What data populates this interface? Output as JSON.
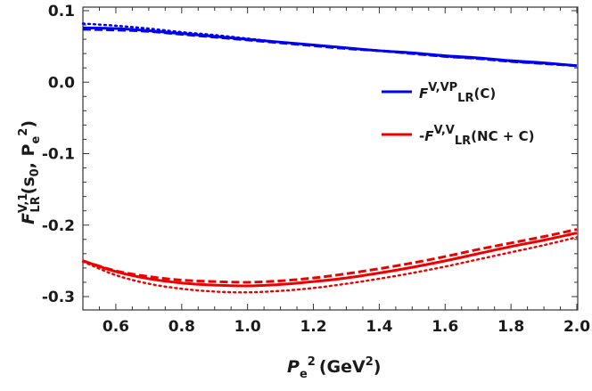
{
  "chart_data": {
    "type": "line",
    "title": "",
    "xlabel": {
      "base": "P",
      "sub": "e",
      "sup": "2",
      "unit_open": "(GeV",
      "unit_sup": "2",
      "unit_close": ")"
    },
    "ylabel": {
      "base": "F",
      "sup": "V,1",
      "sub": "LR",
      "args_open": "(s",
      "args_sub": "0",
      "args_mid": ", P",
      "args_sub2": "e",
      "args_sup2": "2",
      "args_close": ")"
    },
    "xlim": [
      0.5,
      2.0
    ],
    "ylim": [
      -0.3,
      0.1
    ],
    "x_ticks": [
      "0.6",
      "0.8",
      "1.0",
      "1.2",
      "1.4",
      "1.6",
      "1.8",
      "2.0"
    ],
    "y_ticks": [
      "0.1",
      "0.0",
      "-0.1",
      "-0.2",
      "-0.3"
    ],
    "grid": false,
    "legend_position": "right",
    "colors": {
      "blue": "#0000ee",
      "red": "#ee0000",
      "axis": "#333333"
    },
    "legend": [
      {
        "prefix": "",
        "main": "F",
        "sup": "V,VP",
        "sub": "LR",
        "arg": "(C)",
        "color": "#0000ee"
      },
      {
        "prefix": "-",
        "main": "F",
        "sup": "V,V",
        "sub": "LR",
        "arg": "(NC + C)",
        "color": "#ee0000"
      }
    ],
    "x": [
      0.5,
      0.6,
      0.7,
      0.8,
      0.9,
      1.0,
      1.1,
      1.2,
      1.3,
      1.4,
      1.5,
      1.6,
      1.7,
      1.8,
      1.9,
      2.0
    ],
    "series": [
      {
        "color": "#0000ee",
        "style": "solid",
        "values": [
          0.076,
          0.075,
          0.072,
          0.068,
          0.064,
          0.06,
          0.056,
          0.052,
          0.048,
          0.044,
          0.041,
          0.037,
          0.034,
          0.03,
          0.027,
          0.023
        ]
      },
      {
        "color": "#0000ee",
        "style": "dashed",
        "values": [
          0.074,
          0.073,
          0.071,
          0.067,
          0.063,
          0.059,
          0.055,
          0.051,
          0.047,
          0.044,
          0.04,
          0.036,
          0.033,
          0.029,
          0.026,
          0.023
        ]
      },
      {
        "color": "#0000ee",
        "style": "dotted",
        "values": [
          0.082,
          0.079,
          0.075,
          0.07,
          0.066,
          0.061,
          0.056,
          0.052,
          0.048,
          0.044,
          0.04,
          0.036,
          0.033,
          0.029,
          0.026,
          0.023
        ]
      },
      {
        "color": "#ee0000",
        "style": "solid",
        "values": [
          -0.25,
          -0.265,
          -0.275,
          -0.281,
          -0.284,
          -0.285,
          -0.283,
          -0.279,
          -0.274,
          -0.267,
          -0.259,
          -0.25,
          -0.24,
          -0.23,
          -0.221,
          -0.211
        ]
      },
      {
        "color": "#ee0000",
        "style": "dashed",
        "values": [
          -0.25,
          -0.264,
          -0.272,
          -0.277,
          -0.279,
          -0.28,
          -0.278,
          -0.274,
          -0.268,
          -0.261,
          -0.253,
          -0.244,
          -0.234,
          -0.225,
          -0.216,
          -0.206
        ]
      },
      {
        "color": "#ee0000",
        "style": "dotted",
        "values": [
          -0.251,
          -0.27,
          -0.282,
          -0.289,
          -0.293,
          -0.294,
          -0.292,
          -0.288,
          -0.282,
          -0.275,
          -0.267,
          -0.258,
          -0.248,
          -0.238,
          -0.228,
          -0.217
        ]
      }
    ]
  }
}
